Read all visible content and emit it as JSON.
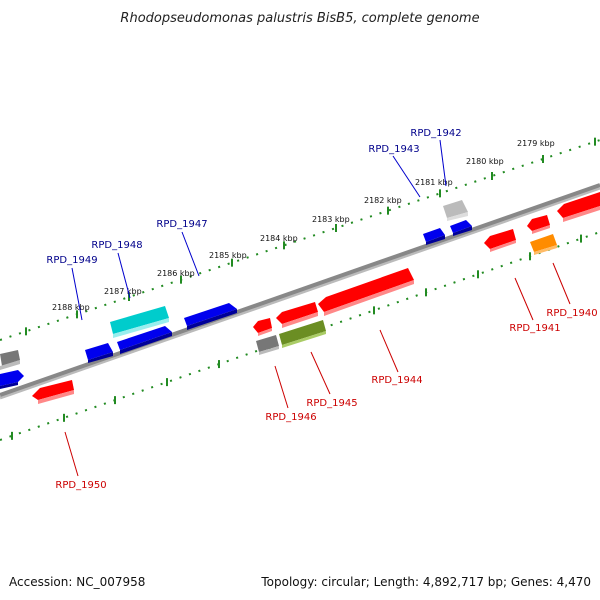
{
  "title": "Rhodopseudomonas palustris BisB5, complete genome",
  "accession": "Accession: NC_007958",
  "topology": "Topology: circular; Length: 4,892,717 bp; Genes: 4,470",
  "ticks": [
    "2179 kbp",
    "2180 kbp",
    "2181 kbp",
    "2182 kbp",
    "2183 kbp",
    "2184 kbp",
    "2185 kbp",
    "2186 kbp",
    "2187 kbp",
    "2188 kbp"
  ],
  "colors": {
    "forward_label": "#00008b",
    "reverse_label": "#cc0000",
    "red": "#ff0000",
    "blue": "#0000ee",
    "cyan": "#00cccc",
    "olive": "#6b8e23",
    "gray": "#777777",
    "light_gray": "#bbbbbb",
    "orange": "#ff8c00",
    "backbone": "#888888",
    "dotted": "#228b22"
  },
  "genes": [
    {
      "label": "RPD_1940",
      "strand": "reverse"
    },
    {
      "label": "RPD_1941",
      "strand": "reverse"
    },
    {
      "label": "RPD_1942",
      "strand": "forward"
    },
    {
      "label": "RPD_1943",
      "strand": "forward"
    },
    {
      "label": "RPD_1944",
      "strand": "reverse"
    },
    {
      "label": "RPD_1945",
      "strand": "reverse"
    },
    {
      "label": "RPD_1946",
      "strand": "reverse"
    },
    {
      "label": "RPD_1947",
      "strand": "forward"
    },
    {
      "label": "RPD_1948",
      "strand": "forward"
    },
    {
      "label": "RPD_1949",
      "strand": "forward"
    },
    {
      "label": "RPD_1950",
      "strand": "reverse"
    }
  ]
}
